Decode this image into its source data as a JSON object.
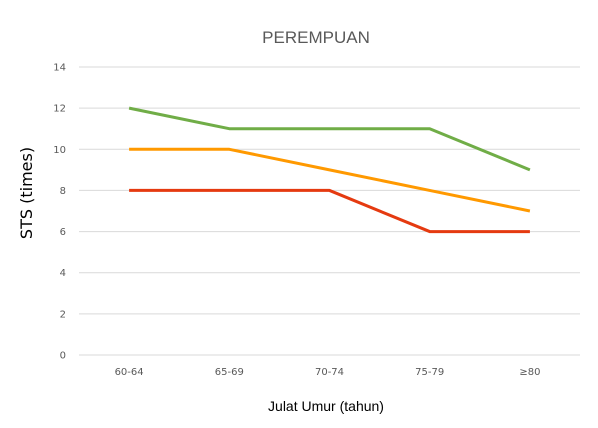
{
  "chart_data": {
    "type": "line",
    "title": "PEREMPUAN",
    "xlabel": "Julat Umur (tahun)",
    "ylabel": "STS (times)",
    "categories": [
      "60-64",
      "65-69",
      "70-74",
      "75-79",
      "≥80"
    ],
    "ylim": [
      0,
      14
    ],
    "yticks": [
      0,
      2,
      4,
      6,
      8,
      10,
      12,
      14
    ],
    "grid": true,
    "legend": "none",
    "series": [
      {
        "color": "#70ad47",
        "values": [
          12,
          11,
          11,
          11,
          9
        ]
      },
      {
        "color": "#ff9900",
        "values": [
          10,
          10,
          9,
          8,
          7
        ]
      },
      {
        "color": "#e53a10",
        "values": [
          8,
          8,
          8,
          6,
          6
        ]
      }
    ]
  }
}
